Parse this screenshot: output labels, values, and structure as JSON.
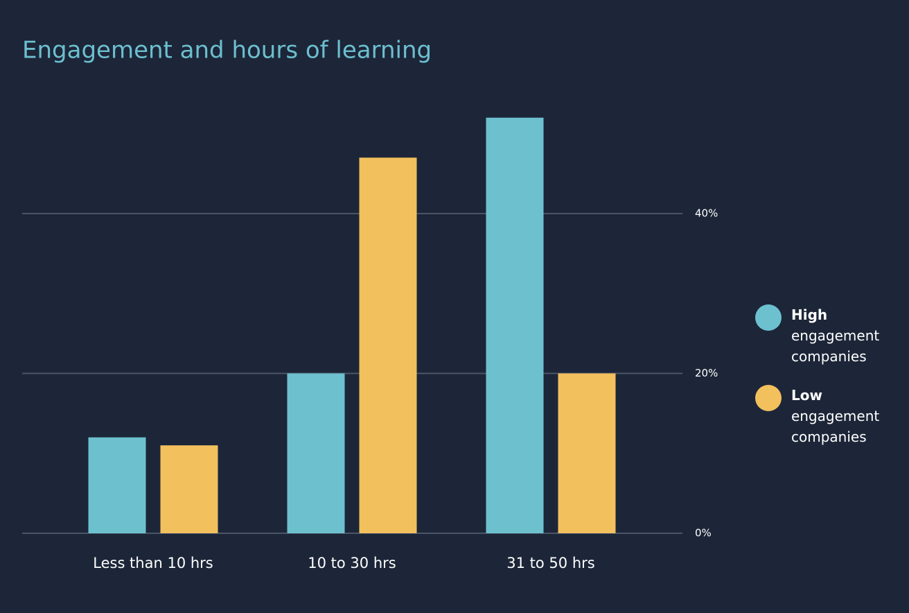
{
  "chart_data": {
    "type": "bar",
    "title": "Engagement and hours of learning",
    "categories": [
      "Less than 10 hrs",
      "10 to 30 hrs",
      "31 to 50 hrs"
    ],
    "series": [
      {
        "name": "High engagement companies",
        "color": "#6dc1cf",
        "values": [
          12,
          20,
          52
        ]
      },
      {
        "name": "Low engagement companies",
        "color": "#f3c05e",
        "values": [
          11,
          47,
          20
        ]
      }
    ],
    "ylim": [
      0,
      56
    ],
    "yticks": [
      {
        "value": 0,
        "label": "0%"
      },
      {
        "value": 20,
        "label": "20%"
      },
      {
        "value": 40,
        "label": "40%"
      }
    ],
    "grid": true,
    "y_axis_side": "right",
    "legend": "right"
  }
}
